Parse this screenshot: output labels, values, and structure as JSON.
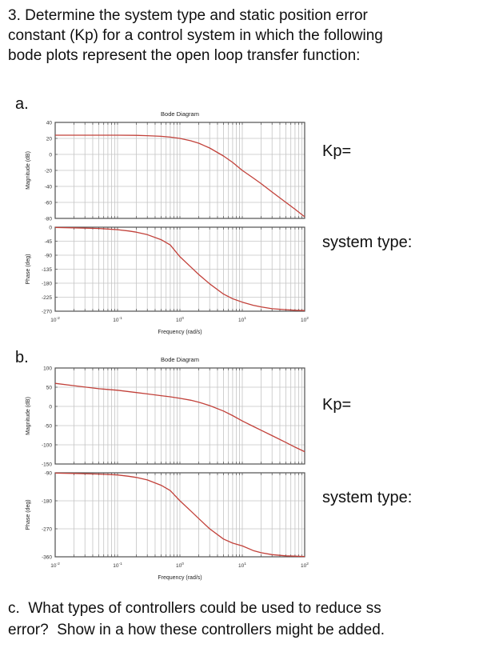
{
  "problem": {
    "statement_lines": [
      "3. Determine the system type and static position error",
      "constant (Kp) for a control system in which the following",
      "bode plots represent the open loop transfer function:"
    ],
    "part_c_lines": [
      "c.  What types of controllers could be used to reduce ss",
      "error?  Show in a how these controllers might be added."
    ]
  },
  "parts": {
    "a": {
      "label": "a.",
      "kp_label": "Kp=",
      "system_type_label": "system type:"
    },
    "b": {
      "label": "b.",
      "kp_label": "Kp=",
      "system_type_label": "system type:"
    }
  },
  "colors": {
    "curve": "#c2413a",
    "grid": "#c4c4c4",
    "box": "#4f4f4f",
    "tick_text": "#333333",
    "plot_text": "#222222"
  },
  "chart_data": [
    {
      "id": "bode-a",
      "type": "line",
      "title": "Bode Diagram",
      "xlabel": "Frequency  (rad/s)",
      "xscale": "log",
      "xlim": [
        0.01,
        100
      ],
      "xtick_exponents": [
        -2,
        -1,
        0,
        1,
        2
      ],
      "grid": true,
      "subplots": [
        {
          "ylabel": "Magnitude (dB)",
          "ylim": [
            -80,
            40
          ],
          "yticks": [
            40,
            20,
            0,
            -20,
            -40,
            -60,
            -80
          ],
          "series": [
            {
              "name": "open-loop magnitude",
              "x": [
                0.01,
                0.02,
                0.05,
                0.1,
                0.2,
                0.3,
                0.5,
                0.7,
                1,
                1.5,
                2,
                3,
                5,
                7,
                10,
                15,
                20,
                30,
                50,
                70,
                100
              ],
              "y": [
                24,
                24,
                24,
                24,
                23.8,
                23.4,
                22.6,
                21.6,
                20,
                17,
                14,
                8,
                -2,
                -10,
                -20,
                -29.5,
                -36.5,
                -47,
                -60,
                -68.5,
                -78
              ]
            }
          ]
        },
        {
          "ylabel": "Phase (deg)",
          "ylim": [
            -270,
            0
          ],
          "yticks": [
            0,
            -45,
            -90,
            -135,
            -180,
            -225,
            -270
          ],
          "series": [
            {
              "name": "open-loop phase",
              "x": [
                0.01,
                0.02,
                0.05,
                0.1,
                0.15,
                0.2,
                0.3,
                0.5,
                0.7,
                1,
                1.5,
                2,
                3,
                5,
                7,
                10,
                15,
                20,
                30,
                50,
                70,
                100
              ],
              "y": [
                -1,
                -2,
                -4,
                -8,
                -12,
                -16,
                -24,
                -40,
                -57,
                -95,
                -128,
                -152,
                -182,
                -215,
                -230,
                -241,
                -251,
                -256,
                -262,
                -265,
                -267,
                -268
              ]
            }
          ]
        }
      ]
    },
    {
      "id": "bode-b",
      "type": "line",
      "title": "Bode Diagram",
      "xlabel": "Frequency  (rad/s)",
      "xscale": "log",
      "xlim": [
        0.01,
        100
      ],
      "xtick_exponents": [
        -2,
        -1,
        0,
        1,
        2
      ],
      "grid": true,
      "subplots": [
        {
          "ylabel": "Magnitude (dB)",
          "ylim": [
            -150,
            100
          ],
          "yticks": [
            100,
            50,
            0,
            -50,
            -100,
            -150
          ],
          "series": [
            {
              "name": "open-loop magnitude",
              "x": [
                0.01,
                0.02,
                0.05,
                0.1,
                0.2,
                0.3,
                0.5,
                0.7,
                1,
                1.5,
                2,
                3,
                5,
                7,
                10,
                15,
                20,
                30,
                50,
                70,
                100
              ],
              "y": [
                60,
                54,
                46,
                42,
                36,
                32.5,
                28,
                25,
                21,
                16,
                11,
                2,
                -12,
                -24,
                -38,
                -52,
                -62,
                -76,
                -94,
                -106,
                -118
              ]
            }
          ]
        },
        {
          "ylabel": "Phase (deg)",
          "ylim": [
            -360,
            -90
          ],
          "yticks": [
            -90,
            -180,
            -270,
            -360
          ],
          "series": [
            {
              "name": "open-loop phase",
              "x": [
                0.01,
                0.02,
                0.05,
                0.1,
                0.15,
                0.2,
                0.3,
                0.5,
                0.7,
                1,
                1.5,
                2,
                3,
                5,
                7,
                10,
                15,
                20,
                30,
                50,
                70,
                100
              ],
              "y": [
                -91,
                -92,
                -94,
                -97,
                -101,
                -105,
                -113,
                -130,
                -147,
                -180,
                -213,
                -237,
                -270,
                -303,
                -316,
                -325,
                -340,
                -347,
                -353,
                -357,
                -358,
                -359
              ]
            }
          ]
        }
      ]
    }
  ]
}
